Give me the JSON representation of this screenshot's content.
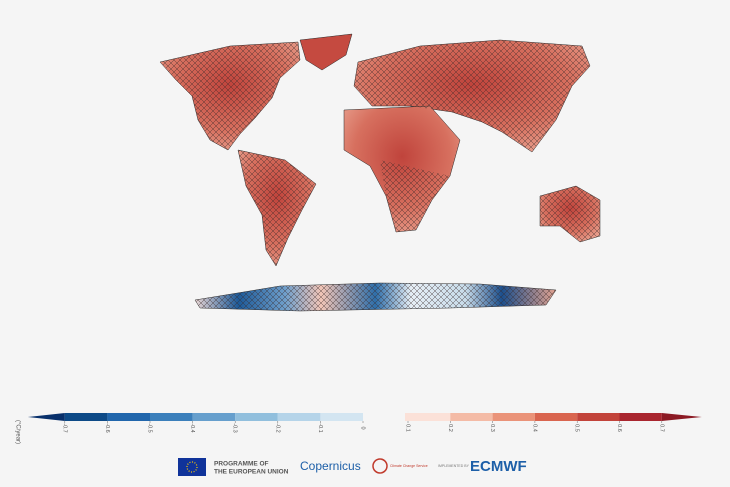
{
  "colorbar": {
    "label": "(°C/year)",
    "ticks": [
      -0.7,
      -0.6,
      -0.5,
      -0.4,
      -0.3,
      -0.2,
      -0.1,
      0,
      0.1,
      0.2,
      0.3,
      0.4,
      0.5,
      0.6,
      0.7
    ],
    "negative_colors": [
      "#08306b",
      "#0d4a87",
      "#2166ac",
      "#3b7fbb",
      "#669fcd",
      "#91bfdd",
      "#b5d4e9",
      "#d3e5f1"
    ],
    "positive_colors": [
      "#fbe1d8",
      "#f4bba6",
      "#ea9379",
      "#d9654f",
      "#c2433a",
      "#a9262f",
      "#8c1a24"
    ]
  },
  "logos": {
    "eu_line1": "PROGRAMME OF",
    "eu_line2": "THE EUROPEAN UNION",
    "copernicus": "Copernicus",
    "c3s": "Climate Change Service",
    "implemented": "IMPLEMENTED BY",
    "ecmwf": "ECMWF"
  }
}
